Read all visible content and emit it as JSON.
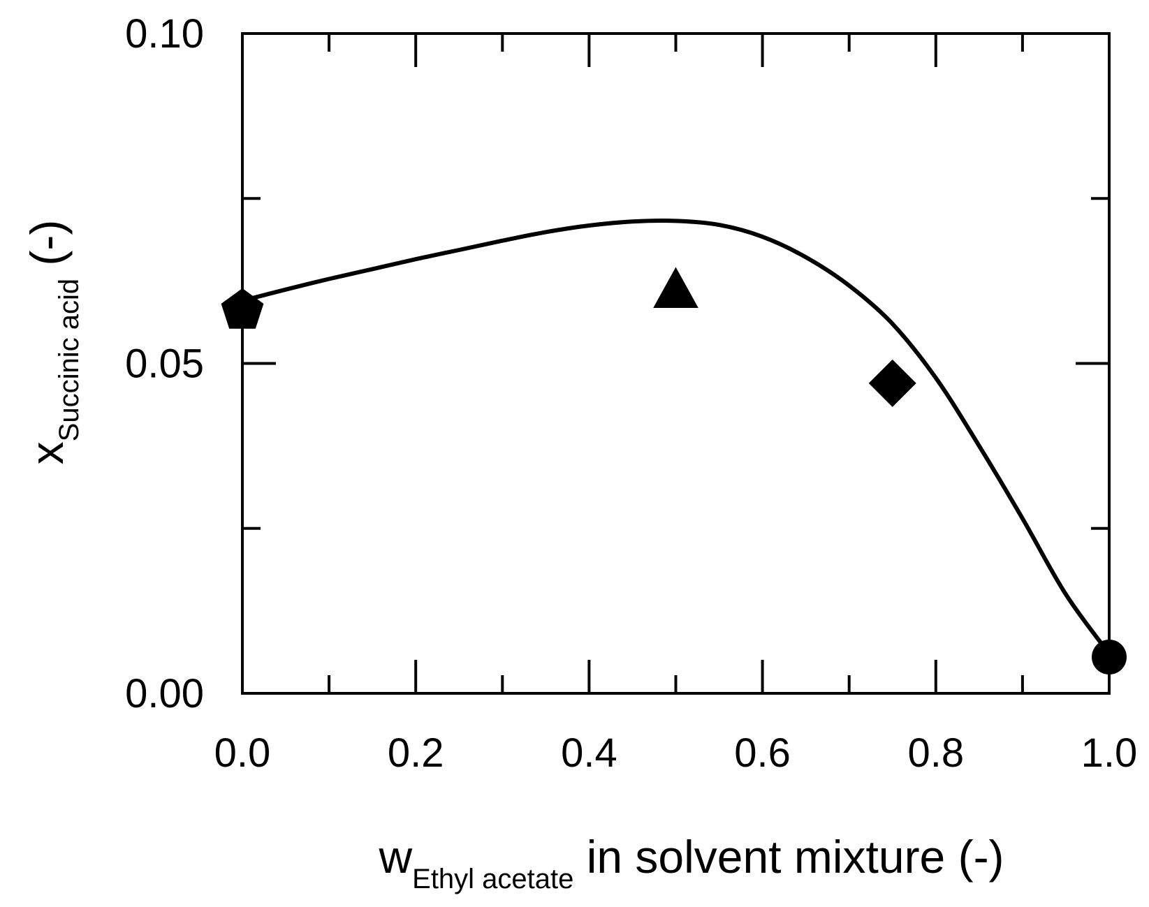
{
  "chart_data": {
    "type": "scatter",
    "title": "",
    "xlabel": {
      "main": "w",
      "sub": "Ethyl acetate",
      "rest": " in solvent mixture (-)"
    },
    "ylabel": {
      "main": "x",
      "sub": "Succinic acid",
      "rest": " (-)"
    },
    "xlim": [
      0.0,
      1.0
    ],
    "ylim": [
      0.0,
      0.1
    ],
    "x_ticks": [
      0.0,
      0.1,
      0.2,
      0.3,
      0.4,
      0.5,
      0.6,
      0.7,
      0.8,
      0.9,
      1.0
    ],
    "x_tick_labels": [
      "0.0",
      "",
      "0.2",
      "",
      "0.4",
      "",
      "0.6",
      "",
      "0.8",
      "",
      "1.0"
    ],
    "y_ticks": [
      0.0,
      0.025,
      0.05,
      0.075,
      0.1
    ],
    "y_tick_labels": [
      "0.00",
      "",
      "0.05",
      "",
      "0.10"
    ],
    "grid": false,
    "points": [
      {
        "marker": "pentagon",
        "x": 0.0,
        "y": 0.058
      },
      {
        "marker": "triangle",
        "x": 0.5,
        "y": 0.061
      },
      {
        "marker": "diamond",
        "x": 0.75,
        "y": 0.047
      },
      {
        "marker": "circle",
        "x": 1.0,
        "y": 0.0055
      }
    ],
    "line": {
      "x": [
        0.0,
        0.05,
        0.1,
        0.15,
        0.2,
        0.25,
        0.3,
        0.35,
        0.4,
        0.45,
        0.5,
        0.55,
        0.6,
        0.65,
        0.7,
        0.75,
        0.8,
        0.85,
        0.9,
        0.95,
        1.0
      ],
      "y": [
        0.0595,
        0.0612,
        0.0628,
        0.0643,
        0.0658,
        0.0672,
        0.0686,
        0.0699,
        0.0709,
        0.0715,
        0.0716,
        0.071,
        0.0692,
        0.0661,
        0.0618,
        0.056,
        0.0478,
        0.0375,
        0.0265,
        0.015,
        0.006
      ]
    },
    "colors": {
      "ink": "#000000",
      "background": "#ffffff"
    }
  }
}
